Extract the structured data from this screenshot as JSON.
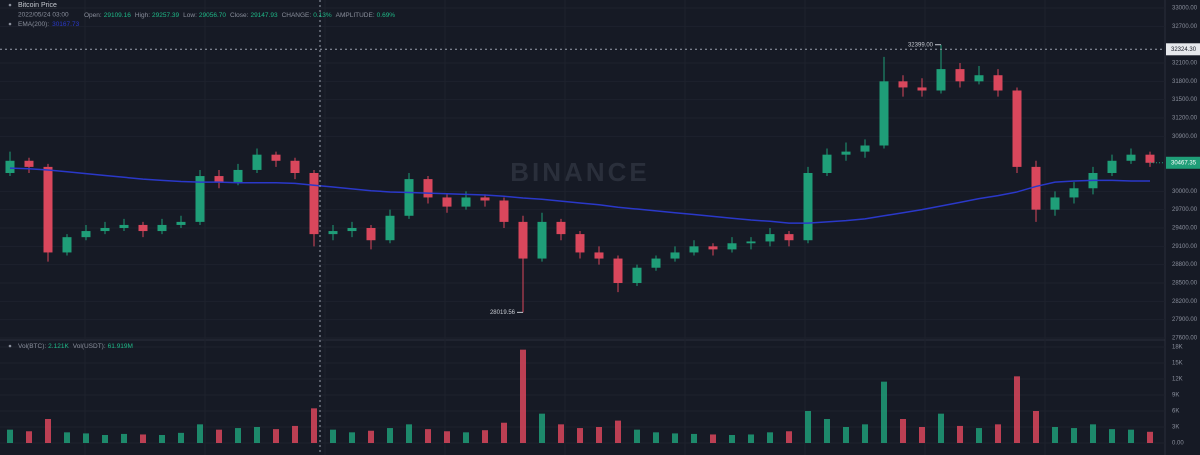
{
  "chart_data": {
    "type": "candlestick",
    "title": "Bitcoin Price",
    "date": "2022/05/24 03:00",
    "ohlc_info": [
      {
        "label": "Open:",
        "value": "29109.16"
      },
      {
        "label": "High:",
        "value": "29257.39"
      },
      {
        "label": "Low:",
        "value": "29056.70"
      },
      {
        "label": "Close:",
        "value": "29147.93"
      },
      {
        "label": "CHANGE:",
        "value": "0.13%"
      },
      {
        "label": "AMPLITUDE:",
        "value": "0.69%"
      }
    ],
    "watermark": "BINANCE",
    "up_color": "#1f9e78",
    "down_color": "#d9475c",
    "open": [
      30300,
      30500,
      30400,
      29000,
      29250,
      29350,
      29400,
      29450,
      29350,
      29450,
      29500,
      30250,
      30150,
      30350,
      30600,
      30500,
      30300,
      29300,
      29350,
      29400,
      29200,
      29600,
      30200,
      29900,
      29750,
      29900,
      29850,
      29500,
      28900,
      29500,
      29300,
      29000,
      28900,
      28500,
      28750,
      28900,
      29000,
      29100,
      29050,
      29150,
      29180,
      29300,
      29200,
      30300,
      30600,
      30650,
      30750,
      31800,
      31700,
      31650,
      32000,
      31800,
      31900,
      31650,
      30400,
      29700,
      29900,
      30050,
      30300,
      30500,
      30600
    ],
    "high": [
      30650,
      30550,
      30450,
      29300,
      29450,
      29500,
      29550,
      29500,
      29550,
      29600,
      30350,
      30350,
      30450,
      30700,
      30650,
      30550,
      30350,
      29450,
      29500,
      29450,
      29700,
      30300,
      30250,
      29950,
      30000,
      29950,
      29900,
      29600,
      29650,
      29550,
      29350,
      29100,
      28950,
      28800,
      28950,
      29100,
      29200,
      29150,
      29250,
      29250,
      29400,
      29350,
      30400,
      30700,
      30800,
      30850,
      32200,
      31900,
      31850,
      32399,
      32100,
      32050,
      32000,
      31700,
      30500,
      30000,
      30150,
      30400,
      30600,
      30700,
      30650
    ],
    "low": [
      30250,
      30300,
      28850,
      28950,
      29200,
      29300,
      29350,
      29250,
      29300,
      29400,
      29450,
      30050,
      30100,
      30300,
      30400,
      30200,
      29100,
      29200,
      29250,
      29050,
      29150,
      29550,
      29800,
      29650,
      29700,
      29750,
      29400,
      28019.56,
      28850,
      29200,
      28900,
      28800,
      28350,
      28450,
      28700,
      28850,
      28950,
      28950,
      29000,
      29050,
      29100,
      29100,
      29150,
      30250,
      30500,
      30550,
      30700,
      31550,
      31550,
      31600,
      31700,
      31750,
      31550,
      30300,
      29500,
      29600,
      29800,
      29950,
      30250,
      30450,
      30400
    ],
    "close": [
      30500,
      30400,
      29000,
      29250,
      29350,
      29400,
      29450,
      29350,
      29450,
      29500,
      30250,
      30150,
      30350,
      30600,
      30500,
      30300,
      29300,
      29350,
      29400,
      29200,
      29600,
      30200,
      29900,
      29750,
      29900,
      29850,
      29500,
      28900,
      29500,
      29300,
      29000,
      28900,
      28500,
      28750,
      28900,
      29000,
      29100,
      29050,
      29150,
      29180,
      29300,
      29200,
      30300,
      30600,
      30650,
      30750,
      31800,
      31700,
      31650,
      32000,
      31800,
      31900,
      31650,
      30400,
      29700,
      29900,
      30050,
      30300,
      30500,
      30600,
      30467.35
    ],
    "volume": [
      2500,
      2200,
      4500,
      2000,
      1800,
      1500,
      1700,
      1600,
      1500,
      1900,
      3500,
      2500,
      2800,
      3000,
      2600,
      3200,
      6500,
      2500,
      2000,
      2300,
      2800,
      3500,
      2600,
      2200,
      2000,
      2400,
      3800,
      17500,
      5500,
      3500,
      2800,
      3000,
      4200,
      2500,
      2000,
      1800,
      1700,
      1600,
      1500,
      1600,
      2000,
      2200,
      6000,
      4500,
      3000,
      3500,
      11500,
      4500,
      3000,
      5500,
      3200,
      2800,
      3500,
      12500,
      6000,
      3000,
      2800,
      3500,
      2600,
      2500,
      2100
    ],
    "ema": {
      "name": "EMA(200):",
      "value_text": "30167.73",
      "color": "#2a38c9",
      "values": [
        30380,
        30370,
        30350,
        30320,
        30290,
        30260,
        30230,
        30200,
        30180,
        30160,
        30150,
        30150,
        30140,
        30140,
        30140,
        30130,
        30100,
        30070,
        30040,
        30010,
        29990,
        29980,
        29970,
        29960,
        29950,
        29940,
        29920,
        29890,
        29870,
        29840,
        29810,
        29780,
        29740,
        29710,
        29680,
        29650,
        29620,
        29590,
        29560,
        29530,
        29510,
        29480,
        29480,
        29500,
        29520,
        29550,
        29600,
        29650,
        29700,
        29760,
        29820,
        29880,
        29930,
        29990,
        30080,
        30150,
        30170,
        30180,
        30180,
        30170,
        30170
      ]
    },
    "ylim": [
      27600,
      33000
    ],
    "yticks": [
      {
        "value": 27600,
        "label": "27600.00"
      },
      {
        "value": 27900,
        "label": "27900.00"
      },
      {
        "value": 28200,
        "label": "28200.00"
      },
      {
        "value": 28500,
        "label": "28500.00"
      },
      {
        "value": 28800,
        "label": "28800.00"
      },
      {
        "value": 29100,
        "label": "29100.00"
      },
      {
        "value": 29400,
        "label": "29400.00"
      },
      {
        "value": 29700,
        "label": "29700.00"
      },
      {
        "value": 30000,
        "label": "30000.00"
      },
      {
        "value": 30900,
        "label": "30900.00"
      },
      {
        "value": 31200,
        "label": "31200.00"
      },
      {
        "value": 31500,
        "label": "31500.00"
      },
      {
        "value": 31800,
        "label": "31800.00"
      },
      {
        "value": 32100,
        "label": "32100.00"
      },
      {
        "value": 32700,
        "label": "32700.00"
      },
      {
        "value": 33000,
        "label": "33000.00"
      }
    ],
    "high_marker": {
      "value": 32399,
      "label": "32399.00"
    },
    "low_marker": {
      "value": 28019.56,
      "label": "28019.56"
    },
    "crosshair_price": {
      "value": 32324.3,
      "label": "32324.30"
    },
    "last_price": {
      "value": 30467.35,
      "label": "30467.35"
    },
    "volume_info": [
      {
        "label": "Vol(BTC):",
        "value": "2.121K"
      },
      {
        "label": "Vol(USDT):",
        "value": "61.919M"
      }
    ],
    "vol_ylim": [
      0,
      18000
    ],
    "vol_yticks": [
      {
        "value": 0,
        "label": "0.00"
      },
      {
        "value": 3000,
        "label": "3K"
      },
      {
        "value": 6000,
        "label": "6K"
      },
      {
        "value": 9000,
        "label": "9K"
      },
      {
        "value": 12000,
        "label": "12K"
      },
      {
        "value": 15000,
        "label": "15K"
      },
      {
        "value": 18000,
        "label": "18K"
      }
    ],
    "grid": true
  }
}
